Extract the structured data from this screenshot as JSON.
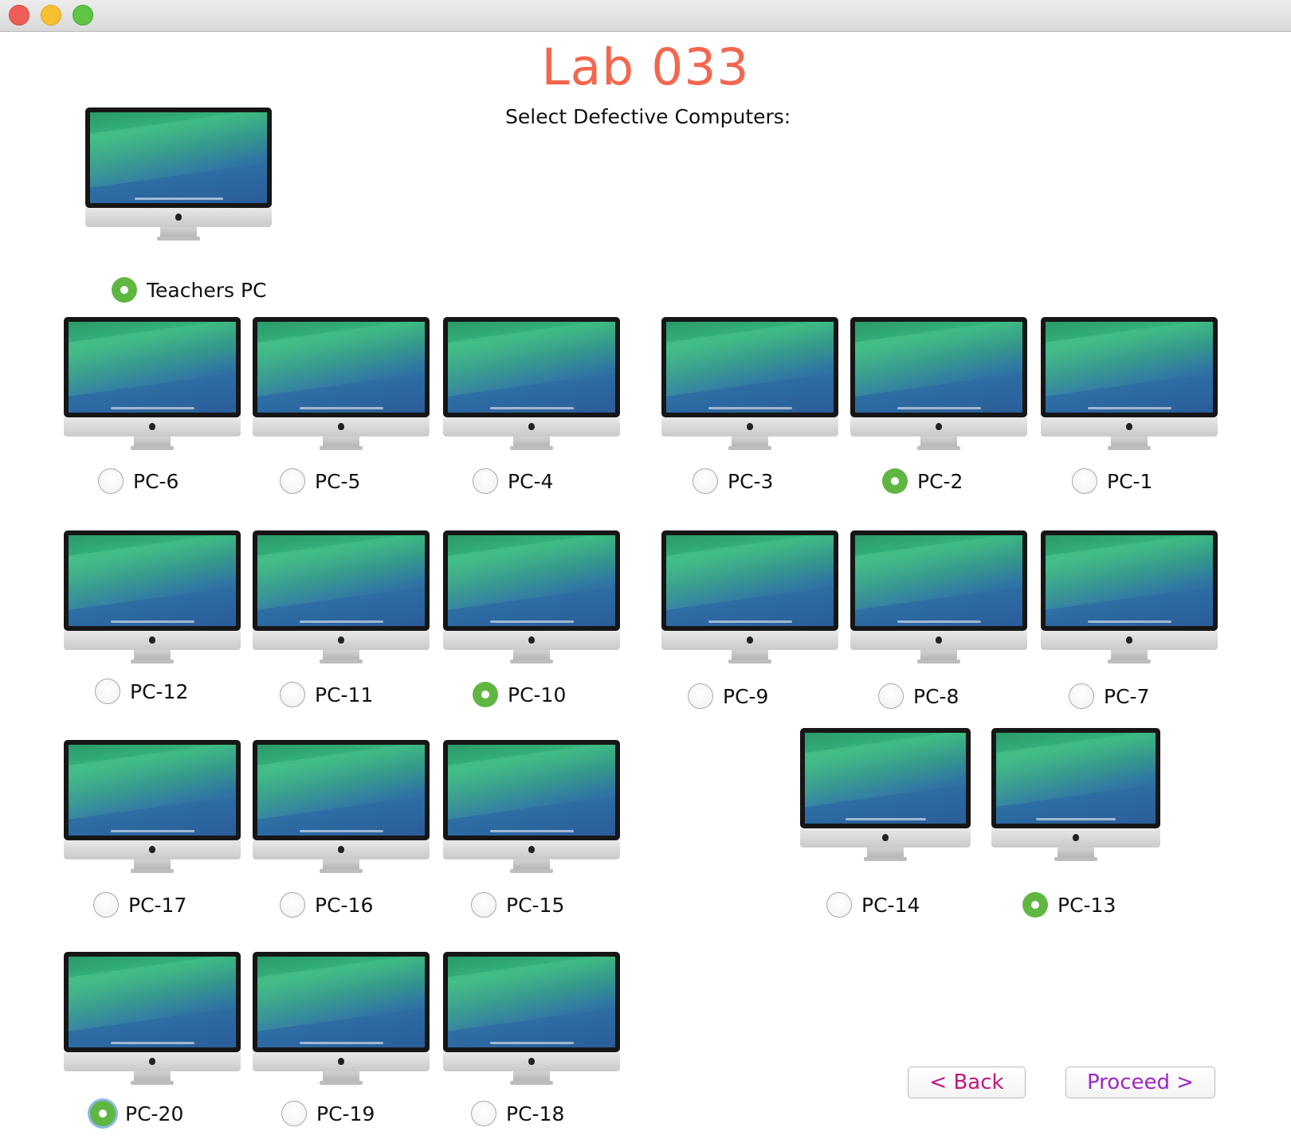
{
  "window": {
    "title": "Lab 033",
    "subtitle": "Select Defective Computers:"
  },
  "teacher": {
    "label": "Teachers PC",
    "checked": true
  },
  "computers": [
    {
      "id": "pc6",
      "label": "PC-6",
      "checked": false
    },
    {
      "id": "pc5",
      "label": "PC-5",
      "checked": false
    },
    {
      "id": "pc4",
      "label": "PC-4",
      "checked": false
    },
    {
      "id": "pc3",
      "label": "PC-3",
      "checked": false
    },
    {
      "id": "pc2",
      "label": "PC-2",
      "checked": true
    },
    {
      "id": "pc1",
      "label": "PC-1",
      "checked": false
    },
    {
      "id": "pc12",
      "label": "PC-12",
      "checked": false
    },
    {
      "id": "pc11",
      "label": "PC-11",
      "checked": false
    },
    {
      "id": "pc10",
      "label": "PC-10",
      "checked": true
    },
    {
      "id": "pc9",
      "label": "PC-9",
      "checked": false
    },
    {
      "id": "pc8",
      "label": "PC-8",
      "checked": false
    },
    {
      "id": "pc7",
      "label": "PC-7",
      "checked": false
    },
    {
      "id": "pc17",
      "label": "PC-17",
      "checked": false
    },
    {
      "id": "pc16",
      "label": "PC-16",
      "checked": false
    },
    {
      "id": "pc15",
      "label": "PC-15",
      "checked": false
    },
    {
      "id": "pc14",
      "label": "PC-14",
      "checked": false
    },
    {
      "id": "pc13",
      "label": "PC-13",
      "checked": true
    },
    {
      "id": "pc20",
      "label": "PC-20",
      "checked": true
    },
    {
      "id": "pc19",
      "label": "PC-19",
      "checked": false
    },
    {
      "id": "pc18",
      "label": "PC-18",
      "checked": false
    }
  ],
  "buttons": {
    "back": "< Back",
    "proceed": "Proceed >"
  }
}
